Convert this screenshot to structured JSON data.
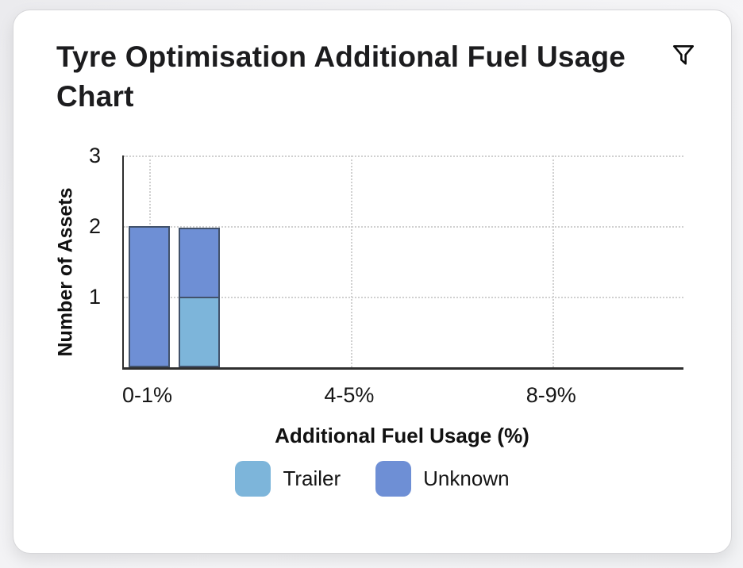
{
  "card": {
    "filter_button_label": "Filter"
  },
  "chart_data": {
    "type": "bar",
    "stacked": true,
    "title": "Tyre Optimisation Additional Fuel Usage Chart",
    "xlabel": "Additional Fuel Usage (%)",
    "ylabel": "Number of Assets",
    "ylim": [
      0,
      3
    ],
    "yticks": [
      3,
      2,
      1
    ],
    "num_slots": 10,
    "x_tick_slots": [
      0,
      4,
      8
    ],
    "x_tick_labels": [
      "0-1%",
      "4-5%",
      "8-9%"
    ],
    "grid": "dotted",
    "legend_position": "bottom",
    "series": [
      {
        "name": "Trailer",
        "color": "#7DB5DA"
      },
      {
        "name": "Unknown",
        "color": "#6E8FD5"
      }
    ],
    "bars": [
      {
        "slot": 0,
        "segments": [
          {
            "series": "Unknown",
            "value": 2
          }
        ]
      },
      {
        "slot": 1,
        "segments": [
          {
            "series": "Trailer",
            "value": 1
          },
          {
            "series": "Unknown",
            "value": 1
          }
        ]
      }
    ],
    "colors": {
      "bar_border": "#42526B",
      "gridline": "#D0D0D0",
      "axis": "#2E2E2E"
    }
  }
}
